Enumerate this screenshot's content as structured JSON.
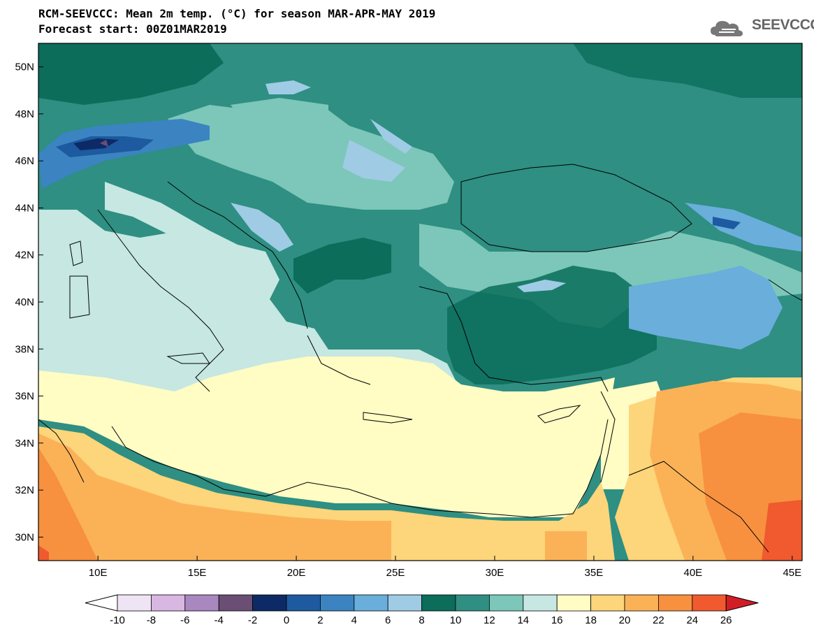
{
  "title": {
    "line1": "RCM-SEEVCCC: Mean 2m temp. (°C) for season MAR-APR-MAY 2019",
    "line2": "Forecast start: 00Z01MAR2019"
  },
  "logo": {
    "text": "SEEVCCC",
    "icon": "cloud-icon"
  },
  "axes": {
    "lat_labels": [
      "50N",
      "48N",
      "46N",
      "44N",
      "42N",
      "40N",
      "38N",
      "36N",
      "34N",
      "32N",
      "30N"
    ],
    "lon_labels": [
      "10E",
      "15E",
      "20E",
      "25E",
      "30E",
      "35E",
      "40E",
      "45E"
    ],
    "lat_values": [
      50,
      48,
      46,
      44,
      42,
      40,
      38,
      36,
      34,
      32,
      30
    ],
    "lon_values": [
      10,
      15,
      20,
      25,
      30,
      35,
      40,
      45
    ],
    "lon_range": [
      7,
      45.5
    ],
    "lat_range": [
      29,
      51
    ]
  },
  "colorbar": {
    "labels": [
      "-10",
      "-8",
      "-6",
      "-4",
      "-2",
      "0",
      "2",
      "4",
      "6",
      "8",
      "10",
      "12",
      "14",
      "16",
      "18",
      "20",
      "22",
      "24",
      "26"
    ],
    "colors": [
      "#efe4f4",
      "#d8b7e3",
      "#a987bf",
      "#6a4e74",
      "#0d2a66",
      "#1d5aa0",
      "#3b84c1",
      "#6aaedb",
      "#9fcbe5",
      "#0b6d5a",
      "#2e8f82",
      "#7cc7b9",
      "#c6e7e2",
      "#fffcc4",
      "#fdd57a",
      "#fbb257",
      "#f7913f",
      "#f05a2e"
    ],
    "under_color": "#ffffff",
    "over_color": "#d21d24"
  },
  "map": {
    "region": "Southeast Europe, Eastern Mediterranean and Middle East",
    "variable": "Mean 2m temperature",
    "units": "°C"
  }
}
